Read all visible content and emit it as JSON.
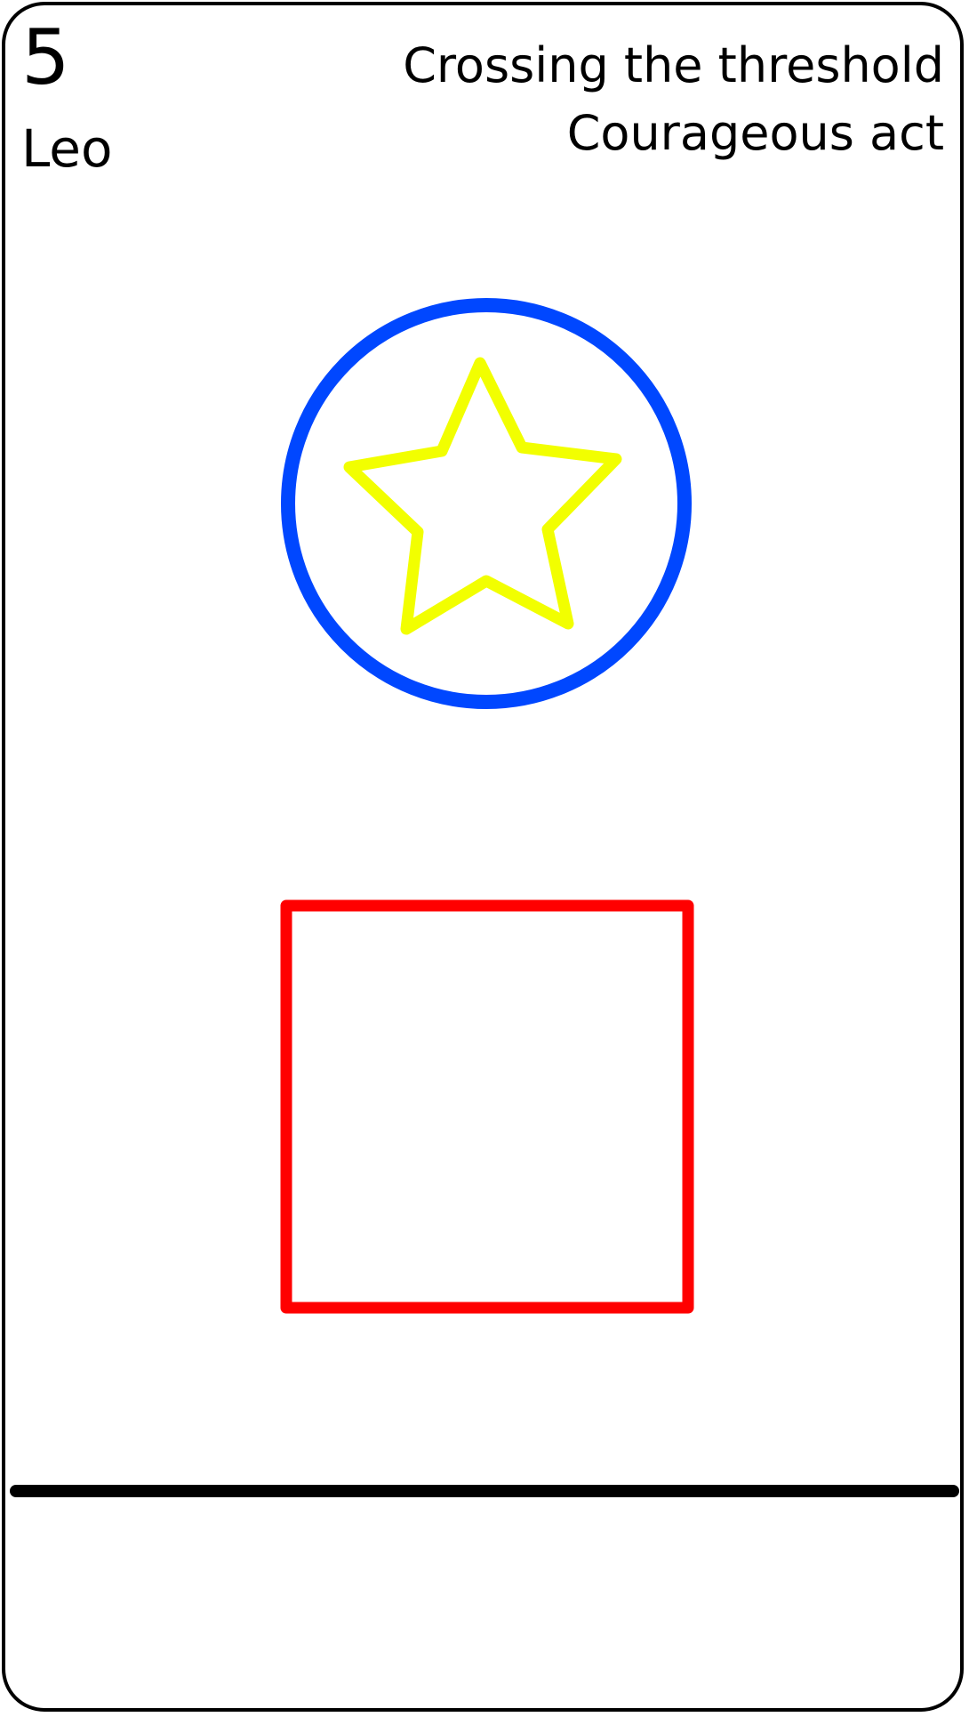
{
  "card": {
    "number": "5",
    "sign": "Leo",
    "title": "Crossing the threshold",
    "subtitle": "Courageous act"
  },
  "colors": {
    "border": "#000000",
    "circle": "#0047ff",
    "star": "#f2ff00",
    "square": "#ff0000",
    "divider": "#000000"
  },
  "icons": [
    "circle-icon",
    "star-icon",
    "square-icon"
  ]
}
